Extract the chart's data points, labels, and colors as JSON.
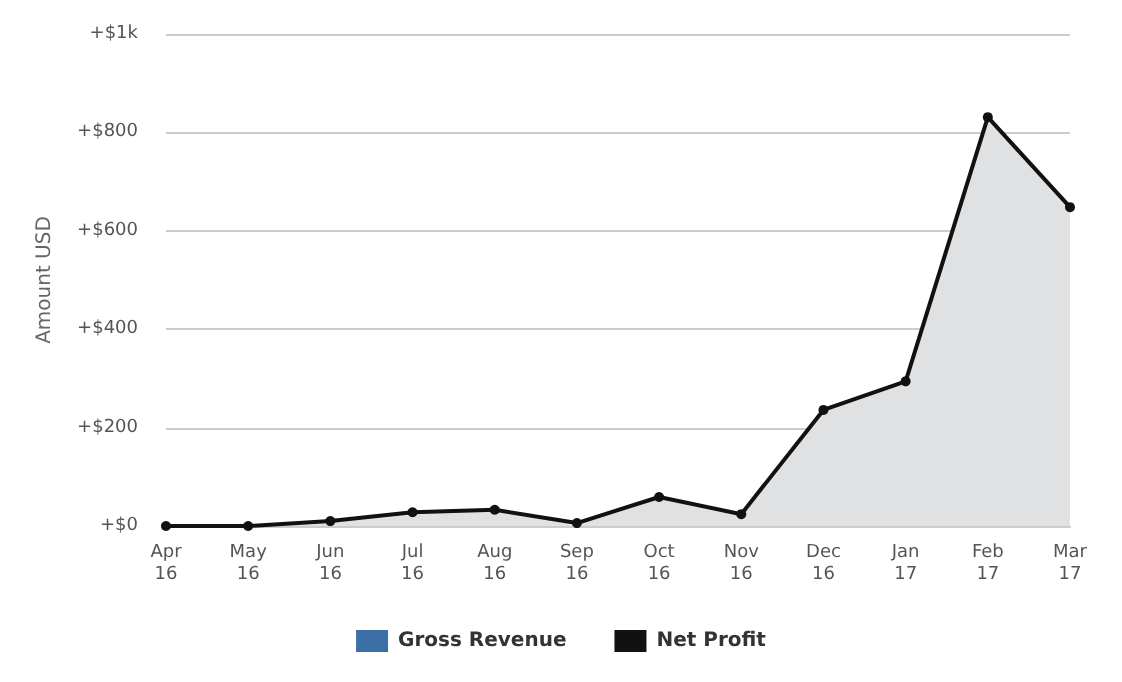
{
  "chart_data": {
    "type": "area",
    "ylabel": "Amount USD",
    "categories": [
      "Apr 16",
      "May 16",
      "Jun 16",
      "Jul 16",
      "Aug 16",
      "Sep 16",
      "Oct 16",
      "Nov 16",
      "Dec 16",
      "Jan 17",
      "Feb 17",
      "Mar 17"
    ],
    "series": [
      {
        "name": "Gross Revenue",
        "color": "#3b6fa6",
        "values": [
          null,
          null,
          null,
          null,
          null,
          null,
          null,
          null,
          null,
          null,
          null,
          null
        ]
      },
      {
        "name": "Net Profit",
        "color": "#111111",
        "values": [
          0,
          0,
          10,
          28,
          33,
          6,
          59,
          24,
          236,
          294,
          831,
          648
        ]
      }
    ],
    "ylim": [
      0,
      1000
    ],
    "yticks": [
      {
        "value": 0,
        "label": "+$0"
      },
      {
        "value": 200,
        "label": "+$200"
      },
      {
        "value": 400,
        "label": "+$400"
      },
      {
        "value": 600,
        "label": "+$600"
      },
      {
        "value": 800,
        "label": "+$800"
      },
      {
        "value": 1000,
        "label": "+$1k"
      }
    ],
    "grid": "y",
    "legend": "bottom",
    "marker": "circle",
    "line_style": "solid"
  }
}
